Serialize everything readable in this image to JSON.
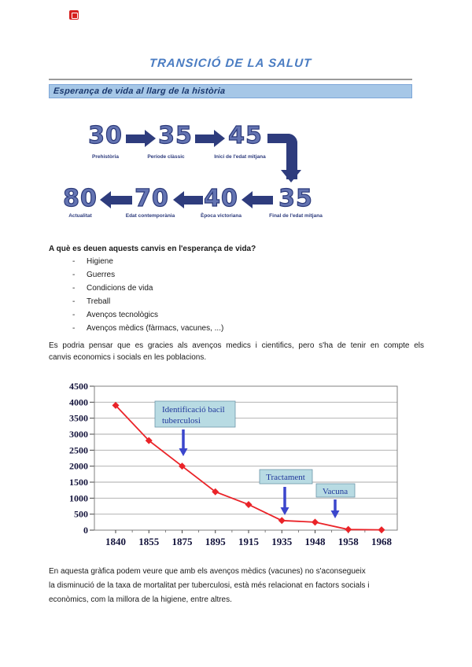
{
  "logo": {
    "color": "#d6201f"
  },
  "title": "TRANSICIÓ DE LA SALUT",
  "section_header": "Esperança de vida al llarg de la història",
  "diagram": {
    "top_row": [
      {
        "value": "30",
        "label": "Prehistòria"
      },
      {
        "value": "35",
        "label": "Període clàssic"
      },
      {
        "value": "45",
        "label": "Inici de l'edat mitjana"
      }
    ],
    "bottom_row": [
      {
        "value": "80",
        "label": "Actualitat"
      },
      {
        "value": "70",
        "label": "Edat contemporània"
      },
      {
        "value": "40",
        "label": "Època victoriana"
      },
      {
        "value": "35",
        "label": "Final de l'edat mitjana"
      }
    ]
  },
  "question": "A què es deuen aquests canvis en l'esperança de vida?",
  "bullet_dash": "-",
  "bullets": [
    "Higiene",
    "Guerres",
    "Condicions de vida",
    "Treball",
    "Avenços tecnològics",
    "Avenços mèdics (fàrmacs, vacunes, ...)"
  ],
  "paragraph1_lines": [
    "Es podria pensar que es gracies als avenços medics i cientifics, pero s'ha de tenir en compte els",
    "canvis economics i socials en les poblacions."
  ],
  "chart_data": {
    "type": "line",
    "categories": [
      "1840",
      "1855",
      "1875",
      "1895",
      "1915",
      "1935",
      "1948",
      "1958",
      "1968"
    ],
    "values": [
      3900,
      2800,
      2000,
      1200,
      800,
      300,
      250,
      20,
      10
    ],
    "title": "",
    "xlabel": "",
    "ylabel": "",
    "ylim": [
      0,
      4500
    ],
    "ytick_step": 500,
    "grid": true,
    "line_color": "#ea2328",
    "marker": "diamond",
    "annotation_box_color": "#b8dbe3",
    "annotation_arrow_color": "#3b46cc",
    "annotations": [
      {
        "text": "Identificació bacil tuberculosi",
        "lines": [
          "Identificació bacil",
          "tuberculosi"
        ]
      },
      {
        "text": "Tractament",
        "lines": [
          "Tractament"
        ]
      },
      {
        "text": "Vacuna",
        "lines": [
          "Vacuna"
        ]
      }
    ]
  },
  "paragraph2_lines": [
    "En aquesta gràfica podem veure que amb els avenços mèdics (vacunes) no s'aconsegueix",
    "la disminució de la taxa de mortalitat per tuberculosi, està més relacionat en factors socials i",
    "econòmics, com la millora de la higiene, entre altres."
  ]
}
